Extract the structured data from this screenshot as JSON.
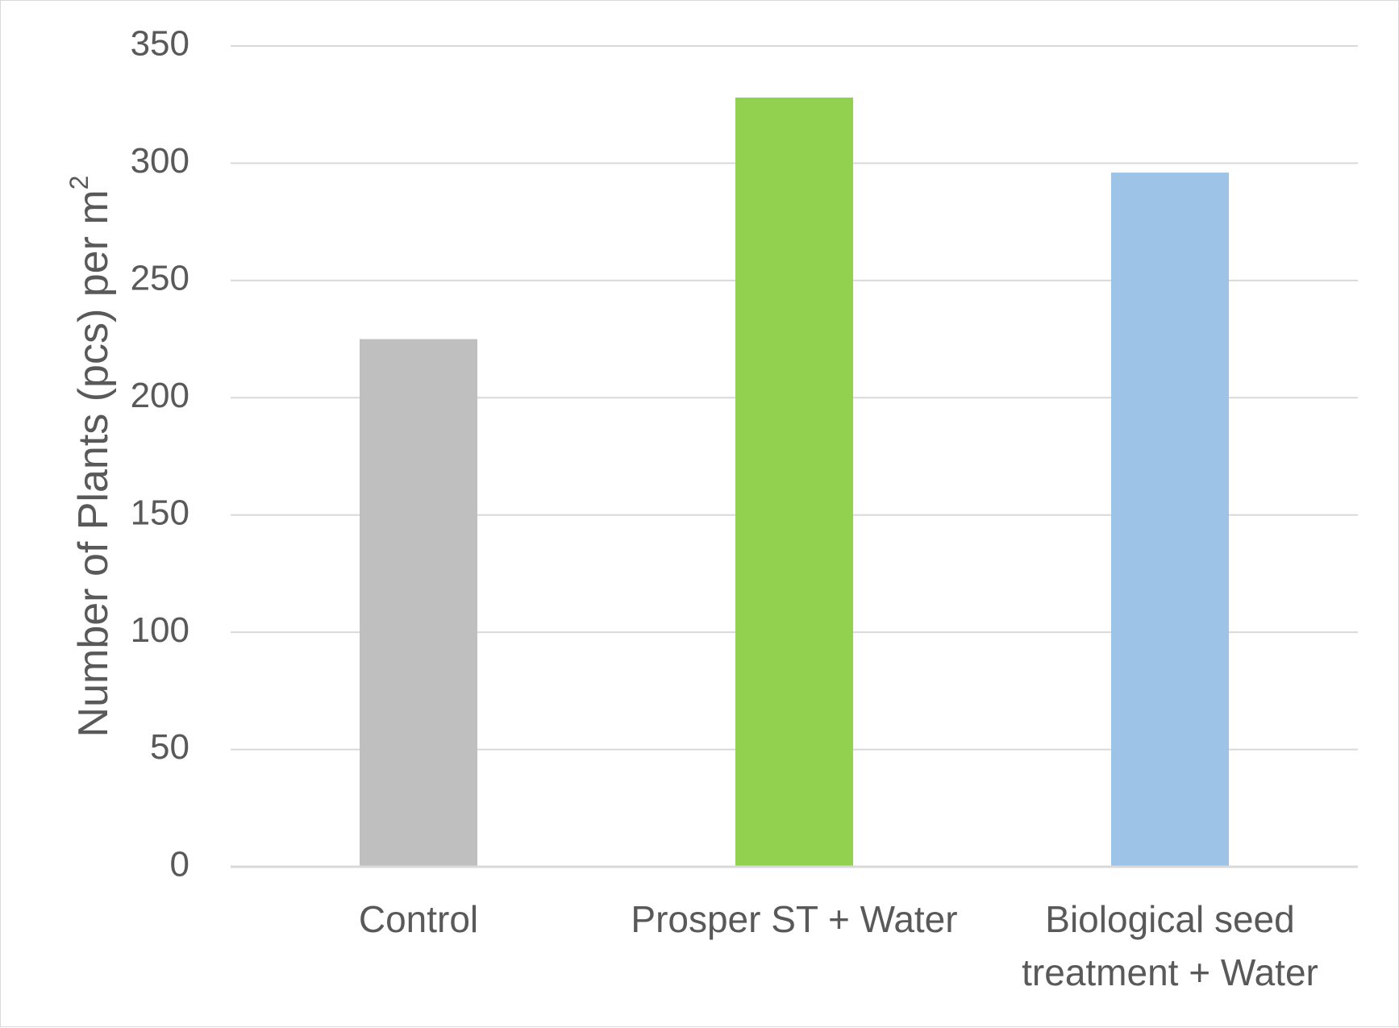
{
  "chart_data": {
    "type": "bar",
    "categories": [
      [
        "Control"
      ],
      [
        "Prosper ST + Water"
      ],
      [
        "Biological seed",
        "treatment + Water"
      ]
    ],
    "values": [
      225,
      328,
      296
    ],
    "colors": [
      "#bfbfbf",
      "#92d050",
      "#9dc3e6"
    ],
    "ylabel_main": "Number of Plants (pcs) per m",
    "ylabel_superscript": "2",
    "ylim": [
      0,
      350
    ],
    "yticks": [
      0,
      50,
      100,
      150,
      200,
      250,
      300,
      350
    ],
    "grid": true,
    "gridline_color": "#d9d9d9",
    "text_color": "#595959"
  }
}
